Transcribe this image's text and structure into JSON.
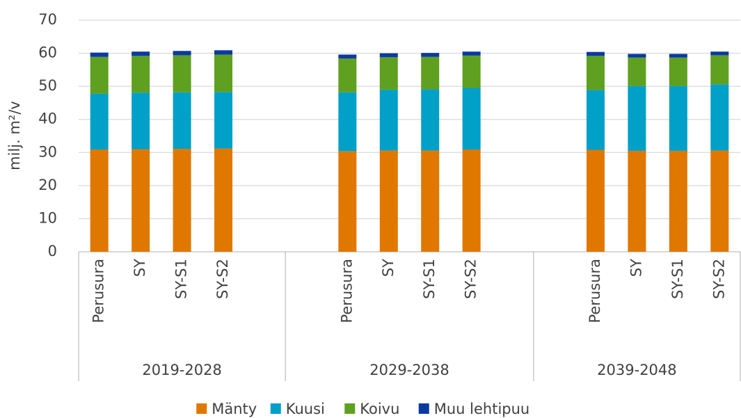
{
  "chart_data": {
    "type": "stacked_bar",
    "ylabel": "milj. m²/v",
    "groups": [
      {
        "label": "2019-2028",
        "categories": [
          "Perusura",
          "SY",
          "SY-S1",
          "SY-S2",
          null
        ]
      },
      {
        "label": "2029-2038",
        "categories": [
          null,
          "Perusura",
          "SY",
          "SY-S1",
          "SY-S2",
          null
        ]
      },
      {
        "label": "2039-2048",
        "categories": [
          null,
          "Perusura",
          "SY",
          "SY-S1",
          "SY-S2"
        ]
      }
    ],
    "series": [
      {
        "name": "Mänty",
        "color": "#e07800",
        "values": [
          30.9,
          31.0,
          31.1,
          31.2,
          null,
          null,
          30.4,
          30.6,
          30.6,
          30.9,
          null,
          null,
          30.8,
          30.5,
          30.5,
          30.6
        ]
      },
      {
        "name": "Kuusi",
        "color": "#00a0c8",
        "values": [
          16.9,
          17.1,
          17.1,
          17.1,
          null,
          null,
          17.8,
          18.4,
          18.5,
          18.6,
          null,
          null,
          18.1,
          19.6,
          19.6,
          20.0
        ]
      },
      {
        "name": "Koivu",
        "color": "#5fa020",
        "values": [
          11.1,
          11.1,
          11.2,
          11.3,
          null,
          null,
          10.2,
          9.8,
          9.8,
          9.8,
          null,
          null,
          10.3,
          8.6,
          8.6,
          8.8
        ]
      },
      {
        "name": "Muu lehtipuu",
        "color": "#0a3aa0",
        "values": [
          1.3,
          1.3,
          1.3,
          1.3,
          null,
          null,
          1.2,
          1.2,
          1.2,
          1.2,
          null,
          null,
          1.2,
          1.1,
          1.1,
          1.1
        ]
      }
    ],
    "ylim": [
      0,
      70
    ],
    "yticks": [
      0,
      10,
      20,
      30,
      40,
      50,
      60,
      70
    ],
    "grid": true
  }
}
